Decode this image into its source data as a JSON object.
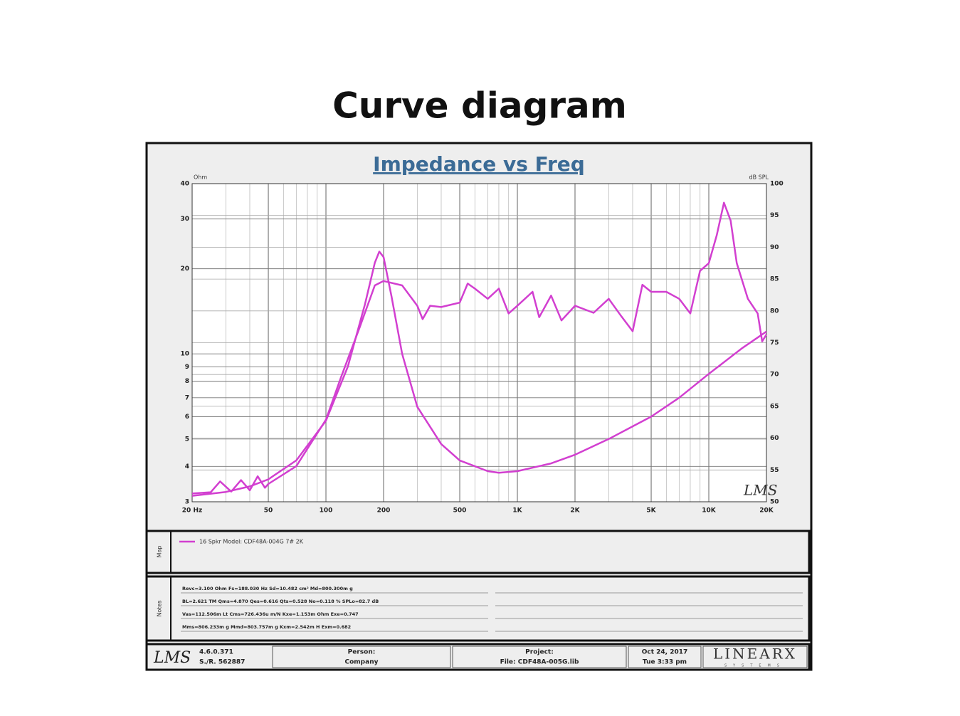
{
  "page_title": "Curve diagram",
  "chart_data": {
    "type": "line",
    "title": "Impedance vs Freq",
    "y_label": "Ohm",
    "y2_label": "dB SPL",
    "logo": "LMS",
    "xscale": "log",
    "yscale": "log",
    "xlim": [
      20,
      20000
    ],
    "xticks": [
      {
        "value": 20,
        "label": "20 Hz"
      },
      50,
      100,
      200,
      500,
      {
        "value": 1000,
        "label": "1K"
      },
      {
        "value": 2000,
        "label": "2K"
      },
      {
        "value": 5000,
        "label": "5K"
      },
      {
        "value": 10000,
        "label": "10K"
      },
      {
        "value": 20000,
        "label": "20K"
      }
    ],
    "ylim": [
      3,
      40
    ],
    "yticks": [
      3,
      4,
      5,
      6,
      7,
      8,
      9,
      10,
      20,
      30,
      40
    ],
    "y2lim": [
      50,
      100
    ],
    "y2ticks": [
      50,
      55,
      60,
      65,
      70,
      75,
      80,
      85,
      90,
      95,
      100
    ],
    "grid": true,
    "series": [
      {
        "name": "16 Spkr Model: CDF48A-004G 7# 2K",
        "color": "#d23fd0",
        "x": [
          20,
          30,
          40,
          50,
          70,
          100,
          130,
          160,
          180,
          190,
          200,
          220,
          250,
          300,
          400,
          500,
          700,
          800,
          1000,
          1500,
          2000,
          3000,
          5000,
          7000,
          10000,
          15000,
          20000
        ],
        "values": [
          3.15,
          3.25,
          3.4,
          3.6,
          4.2,
          5.8,
          9,
          15,
          21,
          23,
          22,
          16,
          10,
          6.5,
          4.8,
          4.2,
          3.85,
          3.8,
          3.85,
          4.1,
          4.4,
          5.0,
          6.0,
          7.0,
          8.5,
          10.5,
          12
        ]
      },
      {
        "color": "#d23fd0",
        "axis": "y2",
        "x": [
          20,
          25,
          28,
          32,
          36,
          40,
          44,
          48,
          50,
          70,
          100,
          120,
          150,
          180,
          200,
          250,
          300,
          320,
          350,
          400,
          500,
          550,
          600,
          700,
          800,
          900,
          1000,
          1200,
          1300,
          1500,
          1700,
          2000,
          2500,
          3000,
          3500,
          4000,
          4500,
          5000,
          6000,
          7000,
          8000,
          9000,
          10000,
          11000,
          12000,
          13000,
          14000,
          16000,
          18000,
          19000,
          20000
        ],
        "values": [
          51.3,
          51.5,
          53.2,
          51.6,
          53.4,
          51.8,
          54,
          52.2,
          52.8,
          55.6,
          62.9,
          69.6,
          77.4,
          84,
          84.7,
          84,
          80.8,
          78.7,
          80.8,
          80.6,
          81.3,
          84.3,
          83.5,
          81.9,
          83.5,
          79.6,
          80.8,
          83,
          79,
          82.4,
          78.5,
          80.8,
          79.7,
          81.9,
          79.1,
          76.8,
          84.1,
          83,
          83,
          81.9,
          79.6,
          86.3,
          87.5,
          91.9,
          97,
          94.2,
          87.5,
          81.9,
          79.6,
          75.2,
          76.3
        ]
      }
    ]
  },
  "map_panel": {
    "label": "Map"
  },
  "notes_panel": {
    "label": "Notes",
    "lines": [
      "Revc=3.100 Ohm  Fs=188.030 Hz  Sd=10.482 cm²  Md=800.300m g",
      "BL=2.621 TM  Qms=4.870  Qes=0.616  Qts=0.528  No=0.118 %  SPLo=82.7 dB",
      "Vas=112.506m Lt  Cms=726.436u m/N  Kxe=1.153m Ohm  Exe=0.747",
      "Mms=806.233m g  Mmd=803.757m g  Kxm=2.542m H  Exm=0.682"
    ]
  },
  "footer": {
    "logo": "LMS",
    "version": "4.6.0.371",
    "serial": "S./R. 562887",
    "person_label": "Person:",
    "person": "Company",
    "project_label": "Project:",
    "project": "File: CDF48A-005G.lib",
    "date": "Oct 24, 2017",
    "time": "Tue 3:33 pm",
    "brand": "LINEARX",
    "brand_sub": "SYSTEMS"
  }
}
